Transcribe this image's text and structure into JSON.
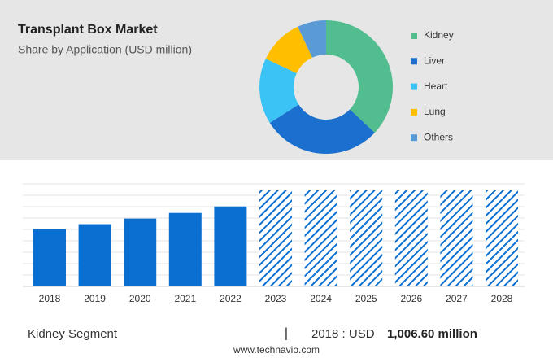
{
  "chart_data": [
    {
      "type": "donut",
      "title": "Transplant Box Market",
      "subtitle": "Share by Application (USD million)",
      "categories": [
        "Kidney",
        "Liver",
        "Heart",
        "Lung",
        "Others"
      ],
      "values": [
        37,
        29,
        16,
        11,
        7
      ],
      "colors": [
        "#52be8f",
        "#1b6fce",
        "#3cc3f5",
        "#ffbf00",
        "#5b9bd5"
      ]
    },
    {
      "type": "bar",
      "categories": [
        "2018",
        "2019",
        "2020",
        "2021",
        "2022",
        "2023",
        "2024",
        "2025",
        "2026",
        "2027",
        "2028"
      ],
      "values": [
        1006.6,
        1092,
        1191,
        1290,
        1404,
        null,
        null,
        null,
        null,
        null,
        null
      ],
      "color": "#0b6fd1",
      "ylim": [
        0,
        1800
      ]
    }
  ],
  "footer": {
    "segment": "Kidney Segment",
    "separator": "|",
    "highlight": "2018 : USD",
    "value": "1,006.60 million",
    "source": "www.technavio.com"
  }
}
